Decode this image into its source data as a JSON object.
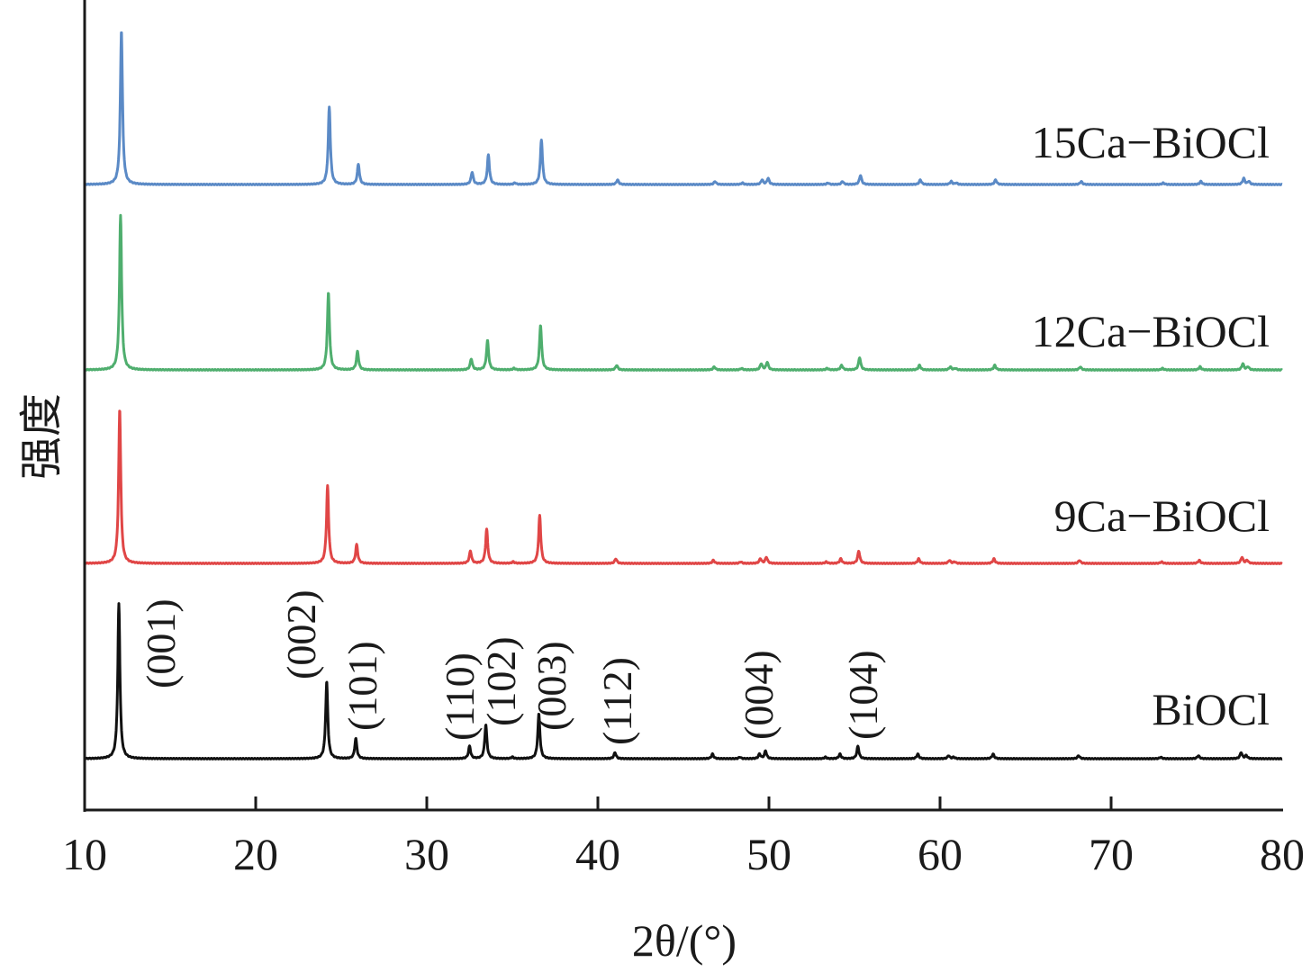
{
  "chart_data": {
    "type": "line",
    "title": "",
    "xlabel": "2θ/(°)",
    "ylabel": "强度",
    "xlim": [
      10,
      80
    ],
    "x_ticks": [
      "10",
      "20",
      "30",
      "40",
      "50",
      "60",
      "70",
      "80"
    ],
    "grid": false,
    "legend": "inline labels at right of each curve",
    "intensity_units": "arbitrary, stacked with offsets; (001) peak = 100",
    "series": [
      {
        "name": "15Ca−BiOCl",
        "color": "#5b8ac6",
        "shift": 0.15,
        "peaks": [
          [
            12.0,
            100
          ],
          [
            24.15,
            50
          ],
          [
            25.85,
            13
          ],
          [
            32.5,
            8
          ],
          [
            33.45,
            19
          ],
          [
            35.0,
            1
          ],
          [
            36.55,
            29
          ],
          [
            41.0,
            3
          ],
          [
            46.7,
            2
          ],
          [
            48.3,
            1
          ],
          [
            49.45,
            3
          ],
          [
            49.8,
            4
          ],
          [
            53.3,
            1
          ],
          [
            54.15,
            2
          ],
          [
            55.2,
            6
          ],
          [
            58.7,
            3
          ],
          [
            60.5,
            2
          ],
          [
            60.8,
            1
          ],
          [
            63.1,
            3
          ],
          [
            68.1,
            2
          ],
          [
            72.9,
            1
          ],
          [
            75.1,
            2
          ],
          [
            77.6,
            4
          ],
          [
            77.9,
            2
          ]
        ]
      },
      {
        "name": "12Ca−BiOCl",
        "color": "#4fae6e",
        "shift": 0.1,
        "peaks": [
          [
            12.0,
            100
          ],
          [
            24.15,
            50
          ],
          [
            25.85,
            12
          ],
          [
            32.5,
            7
          ],
          [
            33.45,
            19
          ],
          [
            35.0,
            1
          ],
          [
            36.55,
            29
          ],
          [
            41.0,
            3
          ],
          [
            46.7,
            2
          ],
          [
            48.3,
            1
          ],
          [
            49.45,
            4
          ],
          [
            49.8,
            5
          ],
          [
            53.3,
            1
          ],
          [
            54.15,
            3
          ],
          [
            55.2,
            8
          ],
          [
            58.7,
            3
          ],
          [
            60.5,
            2
          ],
          [
            60.8,
            1
          ],
          [
            63.1,
            3
          ],
          [
            68.1,
            2
          ],
          [
            72.9,
            1
          ],
          [
            75.1,
            2
          ],
          [
            77.6,
            4
          ],
          [
            77.9,
            2
          ]
        ]
      },
      {
        "name": "9Ca−BiOCl",
        "color": "#e04646",
        "shift": 0.05,
        "peaks": [
          [
            12.0,
            100
          ],
          [
            24.15,
            50
          ],
          [
            25.85,
            12
          ],
          [
            32.5,
            8
          ],
          [
            33.45,
            22
          ],
          [
            35.0,
            1
          ],
          [
            36.55,
            31
          ],
          [
            41.0,
            3
          ],
          [
            46.7,
            2
          ],
          [
            48.3,
            1
          ],
          [
            49.45,
            3
          ],
          [
            49.8,
            4
          ],
          [
            53.3,
            1
          ],
          [
            54.15,
            3
          ],
          [
            55.2,
            8
          ],
          [
            58.7,
            3
          ],
          [
            60.5,
            2
          ],
          [
            60.8,
            1
          ],
          [
            63.1,
            3
          ],
          [
            68.1,
            2
          ],
          [
            72.9,
            1
          ],
          [
            75.1,
            2
          ],
          [
            77.6,
            4
          ],
          [
            77.9,
            2
          ]
        ]
      },
      {
        "name": "BiOCl",
        "color": "#111111",
        "shift": 0.0,
        "peaks": [
          [
            12.0,
            100
          ],
          [
            24.15,
            50
          ],
          [
            25.85,
            13
          ],
          [
            32.5,
            8
          ],
          [
            33.45,
            22
          ],
          [
            35.0,
            1
          ],
          [
            36.55,
            29
          ],
          [
            41.0,
            4
          ],
          [
            46.7,
            3
          ],
          [
            48.3,
            1
          ],
          [
            49.45,
            3
          ],
          [
            49.8,
            5
          ],
          [
            53.3,
            1
          ],
          [
            54.15,
            3
          ],
          [
            55.2,
            8
          ],
          [
            58.7,
            3
          ],
          [
            60.5,
            2
          ],
          [
            60.8,
            1
          ],
          [
            63.1,
            3
          ],
          [
            68.1,
            2
          ],
          [
            72.9,
            1
          ],
          [
            75.1,
            2
          ],
          [
            77.6,
            4
          ],
          [
            77.9,
            2
          ]
        ]
      }
    ],
    "annotations": [
      {
        "text": "(001)",
        "x": 12.0
      },
      {
        "text": "(002)",
        "x": 24.15
      },
      {
        "text": "(101)",
        "x": 25.85
      },
      {
        "text": "(110)",
        "x": 32.5
      },
      {
        "text": "(102)",
        "x": 33.45
      },
      {
        "text": "(003)",
        "x": 36.55
      },
      {
        "text": "(112)",
        "x": 41.0
      },
      {
        "text": "(004)",
        "x": 49.7
      },
      {
        "text": "(104)",
        "x": 55.2
      }
    ]
  }
}
